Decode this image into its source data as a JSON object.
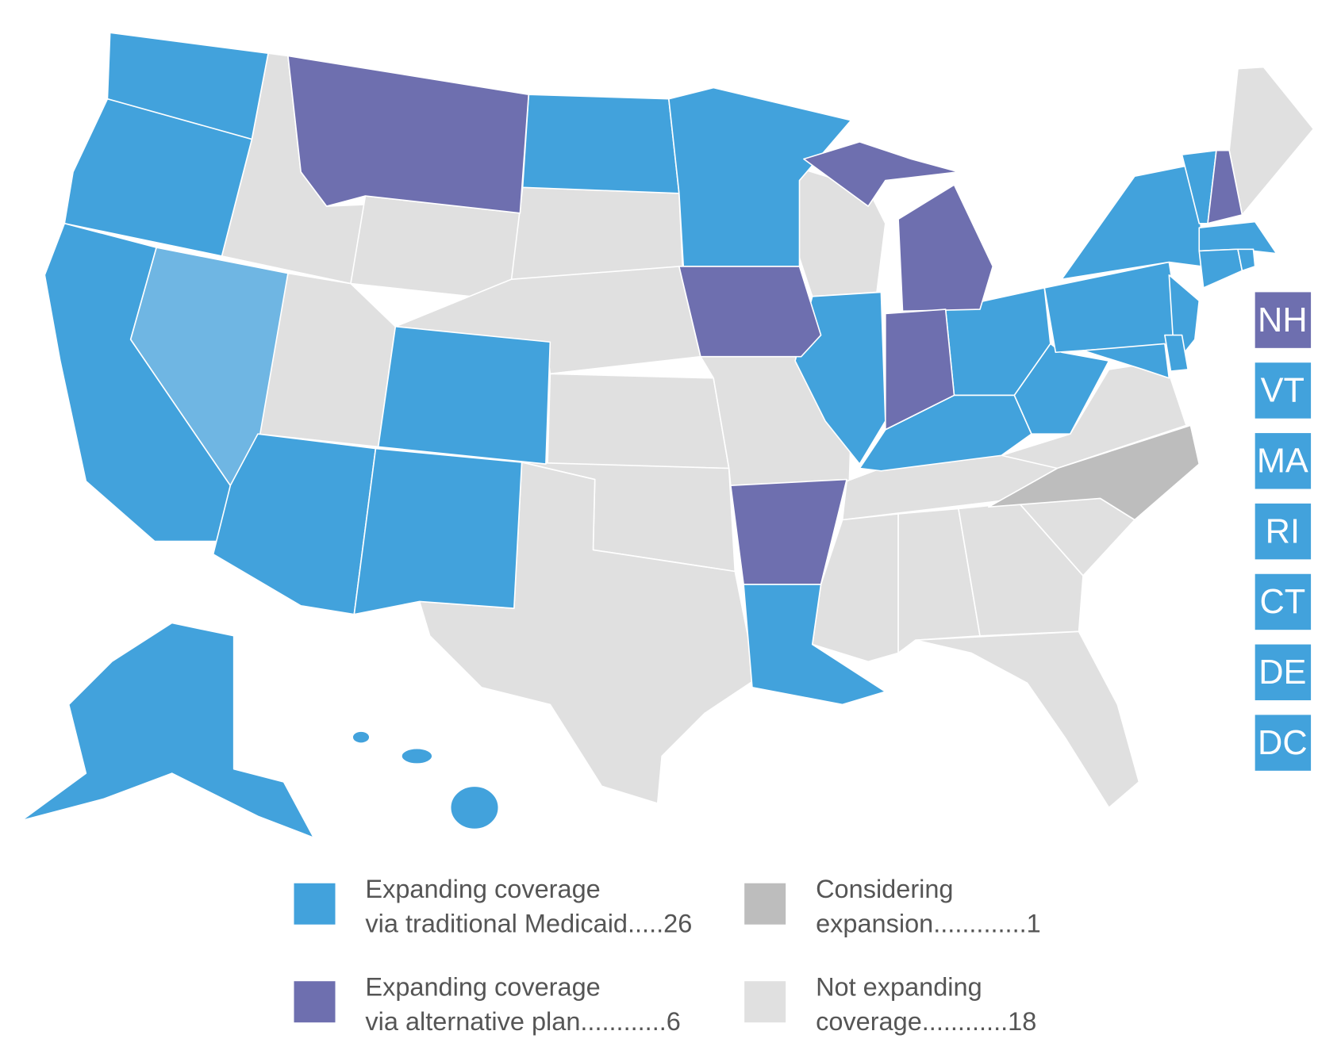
{
  "legend": [
    {
      "color": "#42a2dc",
      "lines": [
        "Expanding coverage",
        "via traditional Medicaid.....26"
      ]
    },
    {
      "color": "#6e6faf",
      "lines": [
        "Expanding coverage",
        "via alternative plan............6"
      ]
    },
    {
      "color": "#bdbdbd",
      "lines": [
        "Considering",
        "expansion.............1"
      ]
    },
    {
      "color": "#e0e0e0",
      "lines": [
        "Not expanding",
        "coverage............18"
      ]
    }
  ],
  "nevada_color": "#6fb6e3",
  "small_states": [
    {
      "label": "NH",
      "color": "#6e6faf"
    },
    {
      "label": "VT",
      "color": "#42a2dc"
    },
    {
      "label": "MA",
      "color": "#42a2dc"
    },
    {
      "label": "RI",
      "color": "#42a2dc"
    },
    {
      "label": "CT",
      "color": "#42a2dc"
    },
    {
      "label": "DE",
      "color": "#42a2dc"
    },
    {
      "label": "DC",
      "color": "#42a2dc"
    }
  ]
}
